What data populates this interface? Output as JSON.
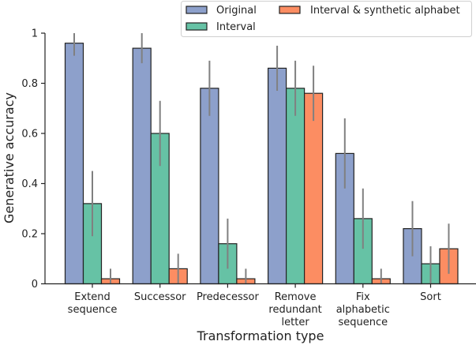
{
  "chart_data": {
    "type": "bar",
    "title": "",
    "xlabel": "Transformation type",
    "ylabel": "Generative accuracy",
    "ylim": [
      0,
      1
    ],
    "yticks": [
      0,
      0.2,
      0.4,
      0.6,
      0.8,
      1
    ],
    "ytick_labels": [
      "0",
      "0.2",
      "0.4",
      "0.6",
      "0.8",
      "1"
    ],
    "grid": false,
    "legend_position": "top-right",
    "categories": [
      [
        "Extend",
        "sequence"
      ],
      [
        "Successor"
      ],
      [
        "Predecessor"
      ],
      [
        "Remove",
        "redundant",
        "letter"
      ],
      [
        "Fix",
        "alphabetic",
        "sequence"
      ],
      [
        "Sort"
      ]
    ],
    "series": [
      {
        "name": "Original",
        "color": "#8da0cb",
        "values": [
          0.96,
          0.94,
          0.78,
          0.86,
          0.52,
          0.22
        ],
        "err_low": [
          0.91,
          0.88,
          0.67,
          0.77,
          0.38,
          0.11
        ],
        "err_high": [
          1.0,
          1.0,
          0.89,
          0.95,
          0.66,
          0.33
        ]
      },
      {
        "name": "Interval",
        "color": "#66c2a5",
        "values": [
          0.32,
          0.6,
          0.16,
          0.78,
          0.26,
          0.08
        ],
        "err_low": [
          0.19,
          0.47,
          0.06,
          0.67,
          0.14,
          0.0
        ],
        "err_high": [
          0.45,
          0.73,
          0.26,
          0.89,
          0.38,
          0.15
        ]
      },
      {
        "name": "Interval & synthetic alphabet",
        "color": "#fc8d62",
        "values": [
          0.02,
          0.06,
          0.02,
          0.76,
          0.02,
          0.14
        ],
        "err_low": [
          0.0,
          0.0,
          0.0,
          0.65,
          0.0,
          0.04
        ],
        "err_high": [
          0.06,
          0.12,
          0.06,
          0.87,
          0.06,
          0.24
        ]
      }
    ],
    "error_bar_color": "#808080"
  }
}
